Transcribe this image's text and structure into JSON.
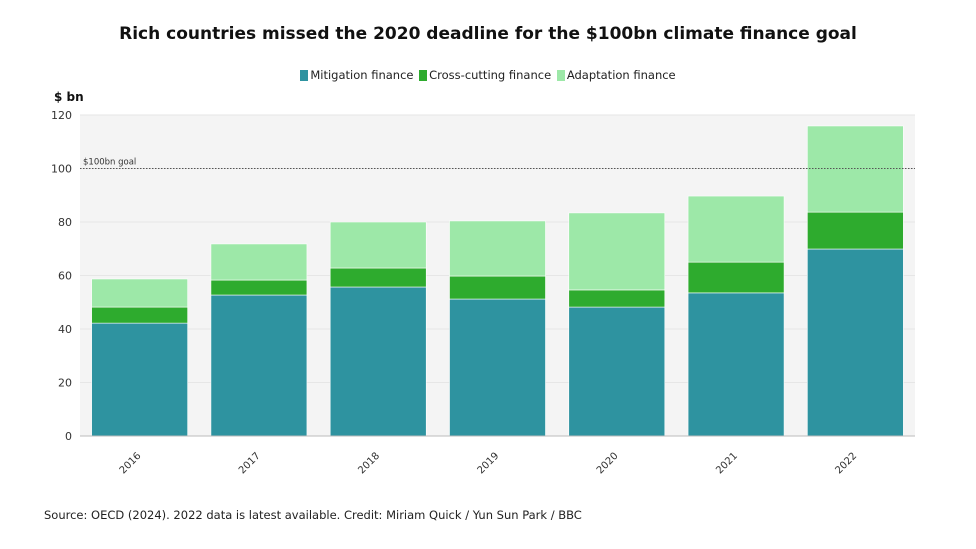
{
  "chart_data": {
    "type": "bar",
    "stacked": true,
    "title": "Rich countries missed the 2020 deadline for the $100bn climate finance goal",
    "ylabel": "$ bn",
    "xlabel": "",
    "ylim": [
      0,
      120
    ],
    "yticks": [
      0,
      20,
      40,
      60,
      80,
      100,
      120
    ],
    "categories": [
      "2016",
      "2017",
      "2018",
      "2019",
      "2020",
      "2021",
      "2022"
    ],
    "series": [
      {
        "name": "Mitigation finance",
        "color": "#2e93a0",
        "values": [
          42.2,
          52.7,
          55.7,
          51.2,
          48.2,
          53.5,
          69.9
        ]
      },
      {
        "name": "Cross-cutting finance",
        "color": "#2eab2e",
        "values": [
          6.0,
          5.6,
          7.1,
          8.6,
          6.4,
          11.5,
          13.8
        ]
      },
      {
        "name": "Adaptation finance",
        "color": "#9de8a8",
        "values": [
          10.5,
          13.5,
          17.2,
          20.6,
          28.8,
          24.7,
          32.2
        ]
      }
    ],
    "reference_line": {
      "value": 100,
      "label": "$100bn goal"
    },
    "legend": "top-center",
    "grid": true
  },
  "source": "Source: OECD (2024). 2022 data is latest available. Credit: Miriam Quick / Yun Sun Park / BBC"
}
